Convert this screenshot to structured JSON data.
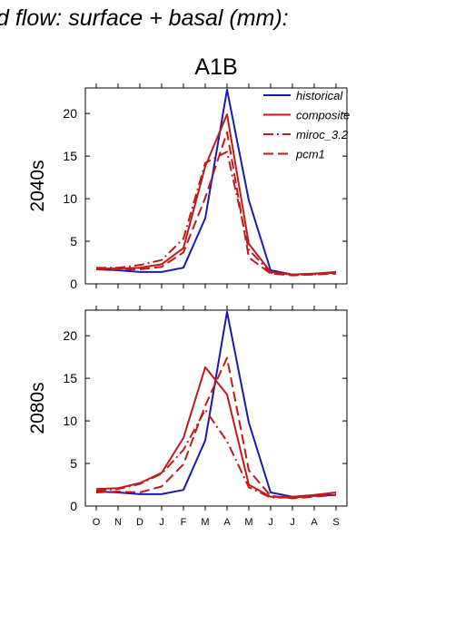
{
  "figure": {
    "title": "d flow: surface + basal (mm):",
    "scenario": "A1B"
  },
  "chart_data": [
    {
      "type": "line",
      "panel_label": "2040s",
      "categories": [
        "O",
        "N",
        "D",
        "J",
        "F",
        "M",
        "A",
        "M",
        "J",
        "J",
        "A",
        "S"
      ],
      "ylim": [
        0,
        23
      ],
      "yticks": [
        0,
        5,
        10,
        15,
        20
      ],
      "show_xtick_labels": false,
      "legend": "top-right",
      "series": [
        {
          "name": "historical",
          "color": "#1a1ab0",
          "dash": "solid",
          "values": [
            1.7,
            1.6,
            1.4,
            1.4,
            1.9,
            7.7,
            22.8,
            9.8,
            1.6,
            1.1,
            1.2,
            1.3
          ]
        },
        {
          "name": "composite",
          "color": "#c01a1a",
          "dash": "solid",
          "values": [
            1.8,
            1.8,
            1.9,
            2.3,
            4.2,
            13.8,
            19.9,
            4.7,
            1.4,
            1.1,
            1.2,
            1.4
          ]
        },
        {
          "name": "miroc_3.2",
          "color": "#c01a1a",
          "dash": "dashdot",
          "values": [
            1.9,
            1.9,
            2.2,
            2.8,
            5.3,
            14.2,
            15.5,
            4.0,
            1.3,
            1.1,
            1.1,
            1.3
          ]
        },
        {
          "name": "pcm1",
          "color": "#c01a1a",
          "dash": "dash",
          "values": [
            1.7,
            1.7,
            1.7,
            2.0,
            3.7,
            10.1,
            17.8,
            3.1,
            1.2,
            1.0,
            1.1,
            1.2
          ]
        }
      ]
    },
    {
      "type": "line",
      "panel_label": "2080s",
      "categories": [
        "O",
        "N",
        "D",
        "J",
        "F",
        "M",
        "A",
        "M",
        "J",
        "J",
        "A",
        "S"
      ],
      "ylim": [
        0,
        23
      ],
      "yticks": [
        0,
        5,
        10,
        15,
        20
      ],
      "show_xtick_labels": true,
      "series": [
        {
          "name": "historical",
          "color": "#1a1ab0",
          "dash": "solid",
          "values": [
            1.7,
            1.6,
            1.4,
            1.4,
            1.9,
            7.7,
            22.8,
            9.8,
            1.6,
            1.1,
            1.2,
            1.3
          ]
        },
        {
          "name": "composite",
          "color": "#c01a1a",
          "dash": "solid",
          "values": [
            2.0,
            2.1,
            2.7,
            3.9,
            8.0,
            16.3,
            13.1,
            2.5,
            1.1,
            1.1,
            1.3,
            1.6
          ]
        },
        {
          "name": "miroc_3.2",
          "color": "#c01a1a",
          "dash": "dashdot",
          "values": [
            1.8,
            2.0,
            2.6,
            3.8,
            6.6,
            11.3,
            7.6,
            2.2,
            1.0,
            1.0,
            1.2,
            1.4
          ]
        },
        {
          "name": "pcm1",
          "color": "#c01a1a",
          "dash": "dash",
          "values": [
            1.6,
            1.7,
            1.6,
            2.3,
            4.9,
            11.8,
            17.4,
            4.2,
            1.2,
            0.9,
            1.1,
            1.3
          ]
        }
      ]
    }
  ]
}
